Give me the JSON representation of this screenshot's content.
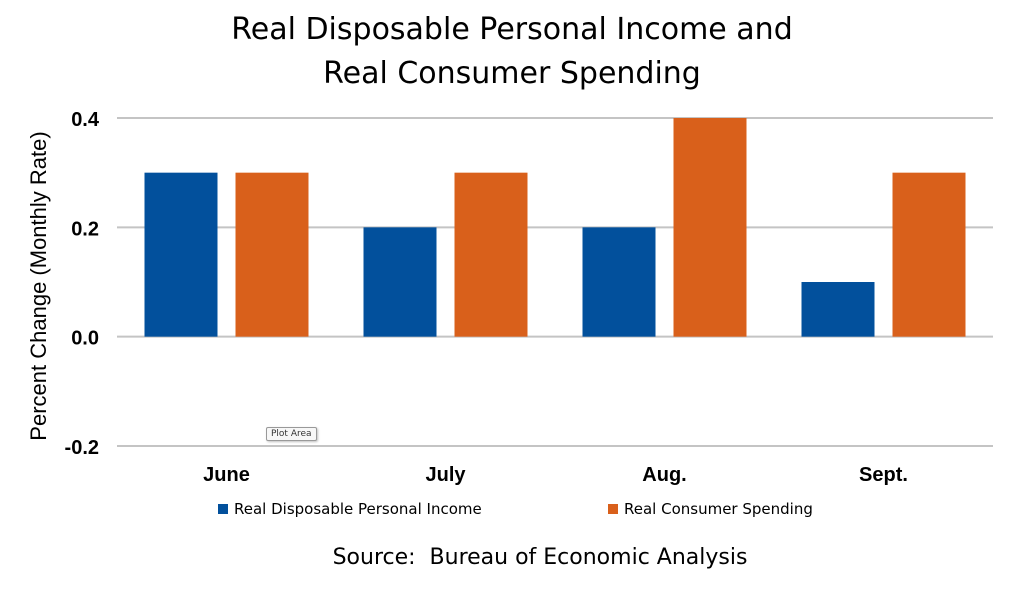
{
  "chart_data": {
    "type": "bar",
    "title": "Real Disposable Personal Income and Real Consumer Spending",
    "title_lines": [
      "Real Disposable Personal Income and",
      "Real Consumer Spending"
    ],
    "ylabel": "Percent Change (Monthly Rate)",
    "xlabel": "",
    "categories": [
      "June",
      "July",
      "Aug.",
      "Sept."
    ],
    "series": [
      {
        "name": "Real Disposable Personal Income",
        "color": "#02509C",
        "values": [
          0.3,
          0.2,
          0.2,
          0.1
        ]
      },
      {
        "name": "Real Consumer Spending",
        "color": "#D9601B",
        "values": [
          0.3,
          0.3,
          0.4,
          0.3
        ]
      }
    ],
    "ylim": [
      -0.2,
      0.4
    ],
    "yticks": [
      0.4,
      0.2,
      0.0,
      -0.2
    ],
    "ytick_labels": [
      "0.4",
      "0.2",
      "0.0",
      "-0.2"
    ],
    "grid": true,
    "legend_position": "bottom",
    "source": "Source:  Bureau of Economic Analysis"
  },
  "tooltip": "Plot Area"
}
